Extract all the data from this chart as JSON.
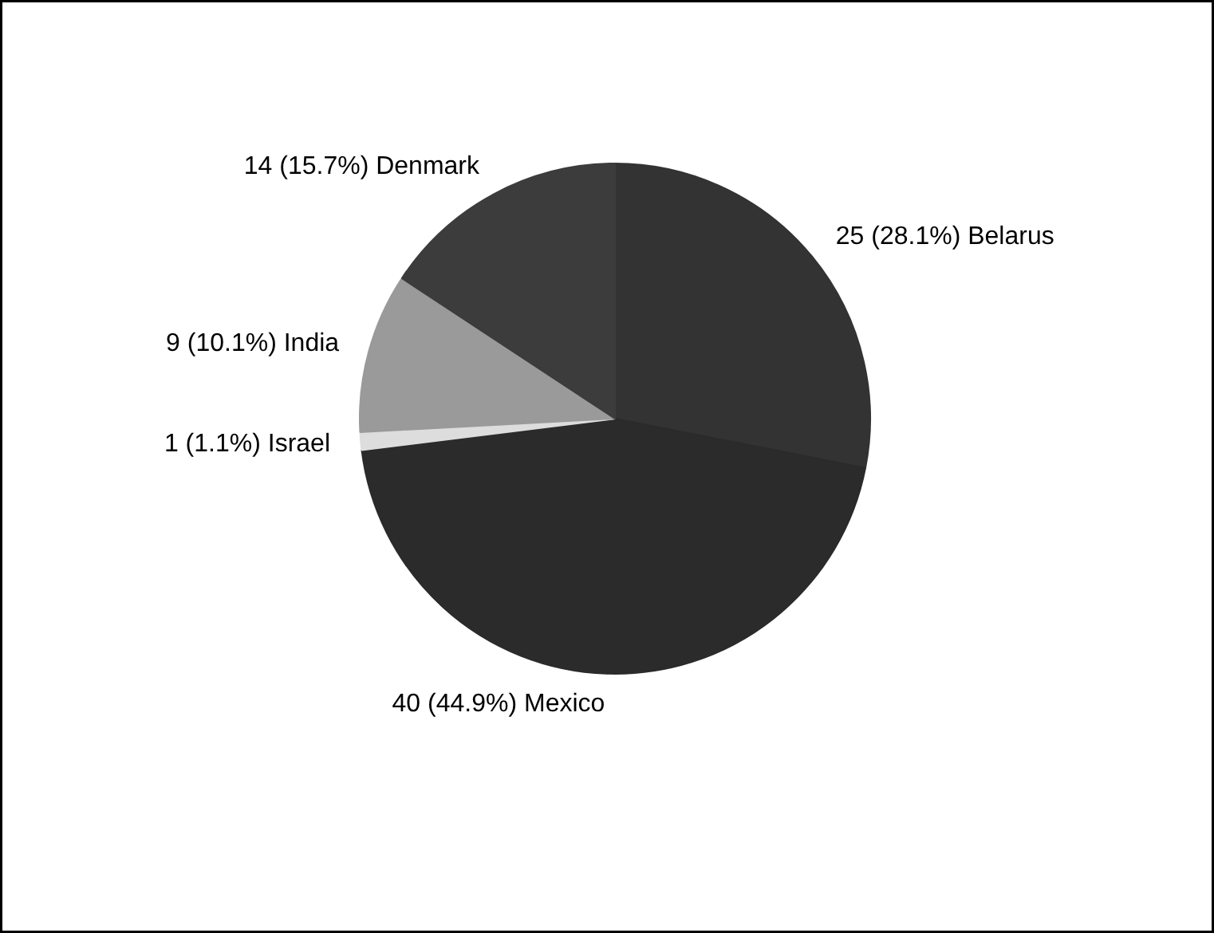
{
  "chart_data": {
    "type": "pie",
    "categories": [
      "Belarus",
      "Mexico",
      "Israel",
      "India",
      "Denmark"
    ],
    "values": [
      25,
      40,
      1,
      9,
      14
    ],
    "value_labels": [
      "25 (28.1%)",
      "40 (44.9%)",
      "1 (1.1%)",
      "9 (10.1%)",
      "14 (15.7%)"
    ],
    "colors": [
      "#333333",
      "#2b2b2b",
      "#dddddd",
      "#9a9a9a",
      "#3c3c3c"
    ]
  }
}
